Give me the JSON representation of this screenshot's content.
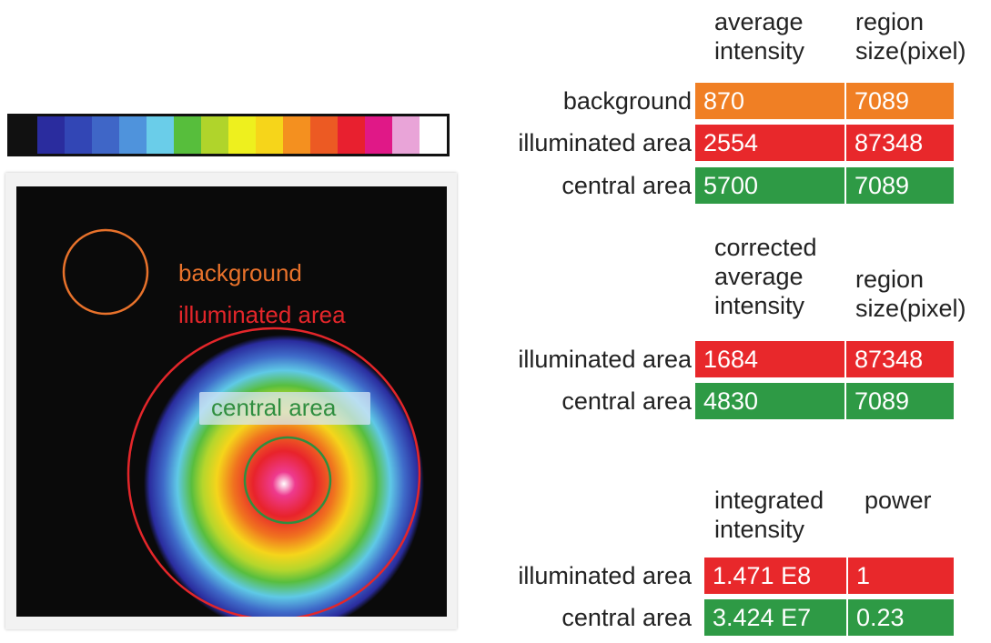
{
  "colorbar": {
    "colors": [
      "#111111",
      "#2a2c9e",
      "#3246b5",
      "#3f66c7",
      "#4f93dc",
      "#6acde9",
      "#57be3c",
      "#b0d42b",
      "#eef01e",
      "#f6d51a",
      "#f4901f",
      "#ec5a23",
      "#e8202f",
      "#e01887",
      "#e9a4d8",
      "#ffffff"
    ]
  },
  "image_panel": {
    "labels": {
      "background": "background",
      "illuminated": "illuminated area",
      "central": "central area"
    },
    "colors": {
      "background_circle": "#e8722b",
      "illuminated_circle": "#e3262a",
      "central_circle": "#2f8e3f"
    }
  },
  "table1": {
    "headers": [
      "average\nintensity",
      "region\nsize(pixel)"
    ],
    "rows": [
      {
        "label": "background",
        "values": [
          "870",
          "7089"
        ],
        "color": "orange"
      },
      {
        "label": "illuminated area",
        "values": [
          "2554",
          "87348"
        ],
        "color": "red"
      },
      {
        "label": "central area",
        "values": [
          "5700",
          "7089"
        ],
        "color": "green"
      }
    ]
  },
  "table2": {
    "headers": [
      "corrected\naverage\nintensity",
      "region\nsize(pixel)"
    ],
    "rows": [
      {
        "label": "illuminated area",
        "values": [
          "1684",
          "87348"
        ],
        "color": "red"
      },
      {
        "label": "central area",
        "values": [
          "4830",
          "7089"
        ],
        "color": "green"
      }
    ]
  },
  "table3": {
    "headers": [
      "integrated\nintensity",
      "power"
    ],
    "rows": [
      {
        "label": "illuminated area",
        "values": [
          "1.471 E8",
          "1"
        ],
        "color": "red"
      },
      {
        "label": "central area",
        "values": [
          "3.424 E7",
          "0.23"
        ],
        "color": "green"
      }
    ]
  }
}
